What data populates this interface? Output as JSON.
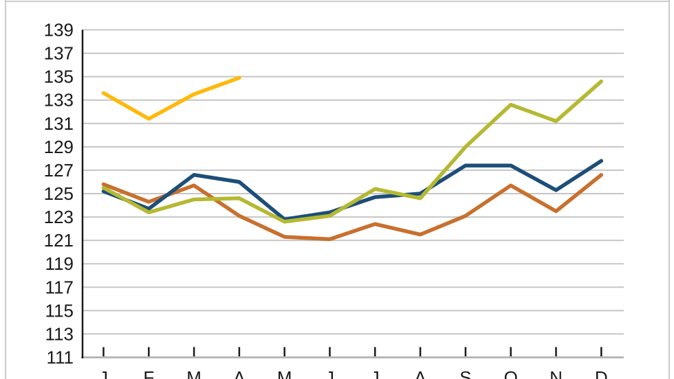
{
  "page": {
    "background_color": "#ffffff",
    "frame_color": "#cbcbcb"
  },
  "chart_data": {
    "type": "line",
    "title": "",
    "xlabel": "",
    "ylabel": "",
    "categories": [
      "J",
      "F",
      "M",
      "A",
      "M",
      "J",
      "J",
      "A",
      "S",
      "O",
      "N",
      "D"
    ],
    "y_ticks": [
      139,
      137,
      135,
      133,
      131,
      129,
      127,
      125,
      123,
      121,
      119,
      117,
      115,
      113,
      111
    ],
    "ylim": [
      111,
      139
    ],
    "grid": true,
    "legend_position": "none",
    "axis_color": "#1a1a1a",
    "gridline_color": "#c5c5c5",
    "baseline_color": "#b8b8b8",
    "label_color": "#191919",
    "series": [
      {
        "name": "brown-orange-line",
        "color": "#c8702e",
        "values": [
          125.8,
          124.3,
          125.7,
          123.1,
          121.3,
          121.1,
          122.4,
          121.5,
          123.1,
          125.7,
          123.5,
          126.6
        ]
      },
      {
        "name": "dark-blue-line",
        "color": "#1d4e79",
        "values": [
          125.2,
          123.7,
          126.6,
          126.0,
          122.8,
          123.4,
          124.7,
          125.0,
          127.4,
          127.4,
          125.3,
          127.8
        ]
      },
      {
        "name": "olive-green-line",
        "color": "#b5b932",
        "values": [
          125.5,
          123.4,
          124.5,
          124.6,
          122.6,
          123.1,
          125.4,
          124.6,
          129.0,
          132.6,
          131.2,
          134.6
        ]
      },
      {
        "name": "amber-yellow-line",
        "color": "#ffb90c",
        "values": [
          133.6,
          131.4,
          133.5,
          134.9,
          null,
          null,
          null,
          null,
          null,
          null,
          null,
          null
        ]
      }
    ]
  }
}
